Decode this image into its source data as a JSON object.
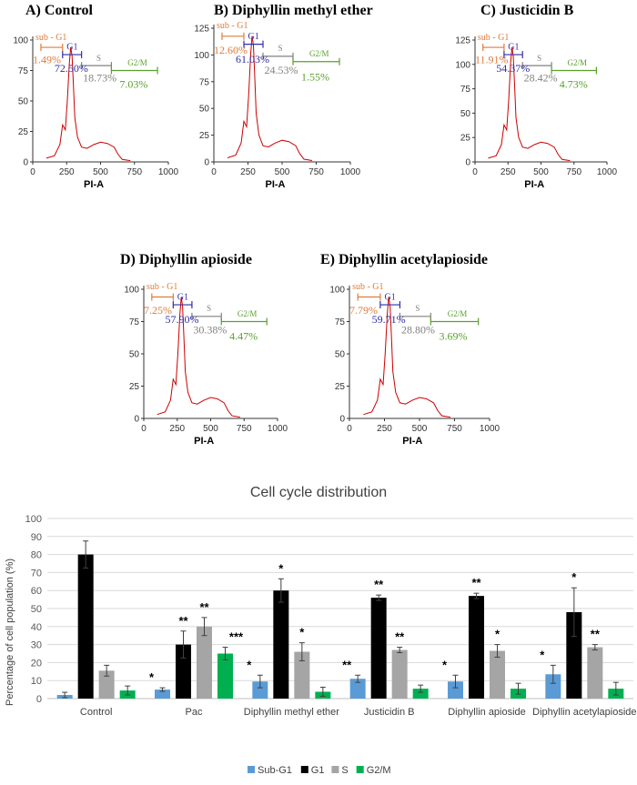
{
  "flow_panels": [
    {
      "title": "A) Control",
      "xlabel": "PI-A",
      "x_ticks": [
        0,
        250,
        500,
        750,
        1000
      ],
      "y_ticks": [
        0,
        25,
        50,
        75,
        100
      ],
      "gates": {
        "subg1": "sub - G1",
        "g1": "G1",
        "s": "S",
        "g2m": "G2/M"
      },
      "percentages": {
        "subg1": "1.49%",
        "g1": "72.50%",
        "s": "18.73%",
        "g2m": "7.03%"
      }
    },
    {
      "title": "B) Diphyllin methyl ether",
      "xlabel": "PI-A",
      "x_ticks": [
        0,
        250,
        500,
        750,
        1000
      ],
      "y_ticks": [
        0,
        25,
        50,
        75,
        100,
        125
      ],
      "gates": {
        "subg1": "sub - G1",
        "g1": "G1",
        "s": "S",
        "g2m": "G2/M"
      },
      "percentages": {
        "subg1": "12.60%",
        "g1": "61.03%",
        "s": "24.53%",
        "g2m": "1.55%"
      }
    },
    {
      "title": "C) Justicidin B",
      "xlabel": "PI-A",
      "x_ticks": [
        0,
        250,
        500,
        750,
        1000
      ],
      "y_ticks": [
        0,
        25,
        50,
        75,
        100,
        125
      ],
      "gates": {
        "subg1": "sub - G1",
        "g1": "G1",
        "s": "S",
        "g2m": "G2/M"
      },
      "percentages": {
        "subg1": "11.91%",
        "g1": "54.37%",
        "s": "28.42%",
        "g2m": "4.73%"
      }
    },
    {
      "title": "D) Diphyllin apioside",
      "xlabel": "PI-A",
      "x_ticks": [
        0,
        250,
        500,
        750,
        1000
      ],
      "y_ticks": [
        0,
        25,
        50,
        75,
        100
      ],
      "gates": {
        "subg1": "sub - G1",
        "g1": "G1",
        "s": "S",
        "g2m": "G2/M"
      },
      "percentages": {
        "subg1": "7.25%",
        "g1": "57.90%",
        "s": "30.38%",
        "g2m": "4.47%"
      }
    },
    {
      "title": "E) Diphyllin acetylapioside",
      "xlabel": "PI-A",
      "x_ticks": [
        0,
        250,
        500,
        750,
        1000
      ],
      "y_ticks": [
        0,
        25,
        50,
        75,
        100
      ],
      "gates": {
        "subg1": "sub - G1",
        "g1": "G1",
        "s": "S",
        "g2m": "G2/M"
      },
      "percentages": {
        "subg1": "7.79%",
        "g1": "59.71%",
        "s": "28.80%",
        "g2m": "3.69%"
      }
    }
  ],
  "chart_data": {
    "type": "bar",
    "title": "Cell cycle distribution",
    "ylabel": "Percentage of cell population (%)",
    "xlabel": "",
    "ylim": [
      0,
      100
    ],
    "y_ticks": [
      0,
      10,
      20,
      30,
      40,
      50,
      60,
      70,
      80,
      90,
      100
    ],
    "grid": true,
    "legend_position": "bottom",
    "categories": [
      "Control",
      "Pac",
      "Diphyllin methyl ether",
      "Justicidin B",
      "Diphyllin apioside",
      "Diphyllin acetylapioside"
    ],
    "series": [
      {
        "name": "Sub-G1",
        "color": "#5b9bd5",
        "values": [
          2,
          5,
          9.5,
          11,
          9.5,
          13.5
        ],
        "errors": [
          1.5,
          1,
          3.5,
          2,
          3.5,
          5
        ],
        "stars": [
          "",
          "*",
          "*",
          "**",
          "*",
          "*"
        ]
      },
      {
        "name": "G1",
        "color": "#000000",
        "values": [
          80,
          30,
          60,
          56,
          57,
          48
        ],
        "errors": [
          7.5,
          7.5,
          6.5,
          1.5,
          1.5,
          13.5
        ],
        "stars": [
          "",
          "**",
          "*",
          "**",
          "**",
          "*"
        ]
      },
      {
        "name": "S",
        "color": "#a5a5a5",
        "values": [
          15.5,
          40,
          26,
          27,
          26.5,
          28.5
        ],
        "errors": [
          3,
          5,
          5,
          1.5,
          3.5,
          1.5
        ],
        "stars": [
          "",
          "**",
          "*",
          "**",
          "*",
          "**"
        ]
      },
      {
        "name": "G2/M",
        "color": "#00b050",
        "values": [
          4.5,
          25,
          3.8,
          5.5,
          5.5,
          5.5
        ],
        "errors": [
          2.5,
          3.5,
          2.5,
          2,
          3,
          3.5
        ],
        "stars": [
          "",
          "***",
          "",
          "",
          "",
          ""
        ]
      }
    ]
  }
}
